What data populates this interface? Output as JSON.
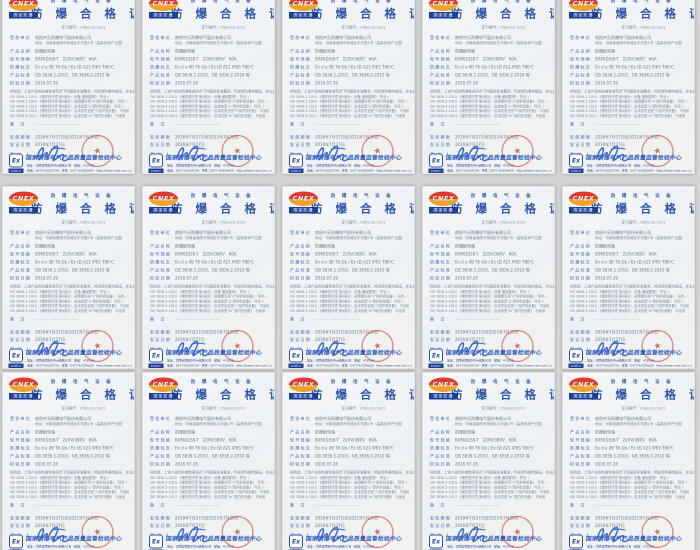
{
  "grid": {
    "rows": 3,
    "cols": 5,
    "count": 15
  },
  "cert": {
    "header_small": "防 爆 电 气 设 备",
    "title": "防 爆 合 格 证",
    "cert_no_label": "证书编号：",
    "cert_no": "CNEx16.1911",
    "logo": {
      "brand": "CNEX",
      "sub": "国家防爆"
    },
    "fields": [
      {
        "label": "受检单位",
        "value": "南阳中天防爆电气股份有限公司",
        "value2": "地址：河南省南阳市宛城区中天路1号（高新技术产业园）"
      },
      {
        "label": "产品名称",
        "value": "防爆配电箱"
      },
      {
        "label": "型号规格",
        "value": "BXM(D)58-T　220V/380V　60A"
      },
      {
        "label": "防爆标志",
        "value": "Ex d e IIB T6 Gb / Ex tD A21 IP65 T80℃"
      },
      {
        "label": "产品标准",
        "value": "GB 3836.1-2010、GB 3836.2-2010 等"
      },
      {
        "label": "检验日期",
        "value": "2016.07.26"
      }
    ],
    "statement": "经检验，上述产品的防爆性能符合下列国家标准要求，特发给防爆合格证，并出具下列检验报告：",
    "standards": [
      "GB 3836.1-2010 《爆炸性环境 第1部分：设备 通用要求》　符合 √",
      "GB 3836.2-2010 《爆炸性环境 第2部分：由隔爆外壳“d”保护的设备》　符合 √",
      "GB 3836.3-2010 《爆炸性环境 第3部分：由增安型“e”保护的设备》　符合 √",
      "GB 3836.4-2010 《爆炸性环境 第4部分：由本质安全型“i”保护的设备》　不适用",
      "GB 3836.9-2014 《爆炸性环境 第9部分：由浇封型“m”保护的设备》　不适用"
    ],
    "remark_label": "备　注",
    "remark_value": "——————————",
    "valid_label": "有效期限",
    "valid_value": "2016年7月27日至2021年7月26日",
    "issue_label": "发证日期",
    "issue_value": "2016年7月27日",
    "signer_label": "签 发 人",
    "footer": {
      "ex_mark": "Ex",
      "ex_sub": "CNEX",
      "center_name": "国家防爆电气产品质量监督检验中心",
      "address_line1": "地址：河南省南阳市中州西路20号　邮编：473008",
      "address_line2": "电话：0377-63239734　传真：0377-63226825　http://www.cnex.com.cn"
    },
    "colors": {
      "accent_blue": "#2b55ad",
      "navy": "#1d3f94",
      "seal_red": "#d3483e",
      "signature_blue": "#3d6ccc",
      "page": "#f3f5f8",
      "background": "#d4d4d4"
    }
  }
}
